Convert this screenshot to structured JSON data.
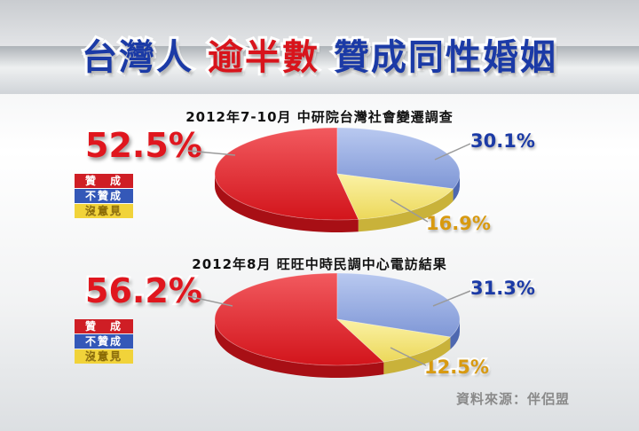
{
  "title": {
    "part1": "台灣人",
    "part2": "逾半數",
    "part3": "贊成同性婚姻"
  },
  "source": "資料來源：伴侶盟",
  "chart_data": [
    {
      "type": "pie",
      "title": "2012年7-10月  中研院台灣社會變遷調查",
      "labels": [
        "贊　成",
        "不贊成",
        "沒意見"
      ],
      "values": [
        52.5,
        30.1,
        16.9
      ],
      "value_labels": [
        "52.5%",
        "30.1%",
        "16.9%"
      ],
      "colors": [
        "#e3242b",
        "#8fa8e0",
        "#f4e57a"
      ]
    },
    {
      "type": "pie",
      "title": "2012年8月  旺旺中時民調中心電訪結果",
      "labels": [
        "贊　成",
        "不贊成",
        "沒意見"
      ],
      "values": [
        56.2,
        31.3,
        12.5
      ],
      "value_labels": [
        "56.2%",
        "31.3%",
        "12.5%"
      ],
      "colors": [
        "#e3242b",
        "#8fa8e0",
        "#f4e57a"
      ]
    }
  ]
}
